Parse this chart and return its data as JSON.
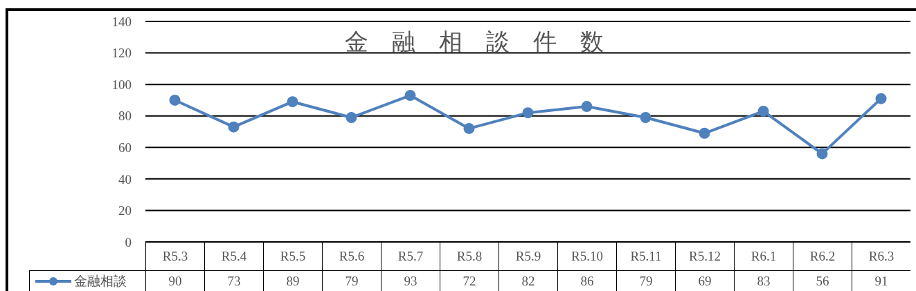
{
  "chart_data": {
    "type": "line",
    "title": "金　融　相　談　件　数",
    "categories": [
      "R5.3",
      "R5.4",
      "R5.5",
      "R5.6",
      "R5.7",
      "R5.8",
      "R5.9",
      "R5.10",
      "R5.11",
      "R5.12",
      "R6.1",
      "R6.2",
      "R6.3"
    ],
    "series": [
      {
        "name": "金融相談",
        "color": "#4f81bd",
        "values": [
          90,
          73,
          89,
          79,
          93,
          72,
          82,
          86,
          79,
          69,
          83,
          56,
          91
        ]
      }
    ],
    "ylim": [
      0,
      140
    ],
    "yticks": [
      0,
      20,
      40,
      60,
      80,
      100,
      120,
      140
    ],
    "grid": "y",
    "marker": "circle",
    "line_style": "solid",
    "data_labels": true,
    "legend": "bottom left"
  }
}
